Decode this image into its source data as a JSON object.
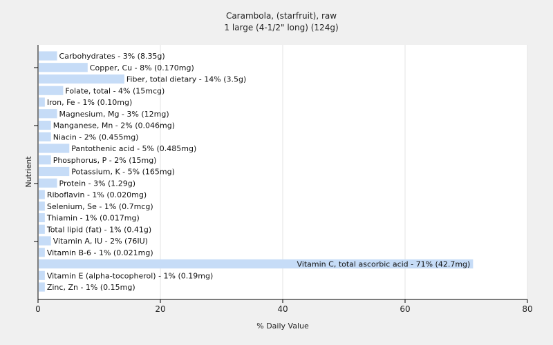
{
  "chart_data": {
    "type": "bar",
    "orientation": "horizontal",
    "title": "Carambola, (starfruit), raw",
    "subtitle": "1 large (4-1/2\" long) (124g)",
    "xlabel": "% Daily Value",
    "ylabel": "Nutrient",
    "xlim": [
      0,
      80
    ],
    "xticks": [
      "0",
      "20",
      "40",
      "60",
      "80"
    ],
    "grid": true,
    "bar_color": "#c6dcf7",
    "categories": [
      "Carbohydrates",
      "Copper, Cu",
      "Fiber, total dietary",
      "Folate, total",
      "Iron, Fe",
      "Magnesium, Mg",
      "Manganese, Mn",
      "Niacin",
      "Pantothenic acid",
      "Phosphorus, P",
      "Potassium, K",
      "Protein",
      "Riboflavin",
      "Selenium, Se",
      "Thiamin",
      "Total lipid (fat)",
      "Vitamin A, IU",
      "Vitamin B-6",
      "Vitamin C, total ascorbic acid",
      "Vitamin E (alpha-tocopherol)",
      "Zinc, Zn"
    ],
    "values": [
      3,
      8,
      14,
      4,
      1,
      3,
      2,
      2,
      5,
      2,
      5,
      3,
      1,
      1,
      1,
      1,
      2,
      1,
      71,
      1,
      1
    ],
    "labels": [
      "Carbohydrates - 3% (8.35g)",
      "Copper, Cu - 8% (0.170mg)",
      "Fiber, total dietary - 14% (3.5g)",
      "Folate, total - 4% (15mcg)",
      "Iron, Fe - 1% (0.10mg)",
      "Magnesium, Mg - 3% (12mg)",
      "Manganese, Mn - 2% (0.046mg)",
      "Niacin - 2% (0.455mg)",
      "Pantothenic acid - 5% (0.485mg)",
      "Phosphorus, P - 2% (15mg)",
      "Potassium, K - 5% (165mg)",
      "Protein - 3% (1.29g)",
      "Riboflavin - 1% (0.020mg)",
      "Selenium, Se - 1% (0.7mcg)",
      "Thiamin - 1% (0.017mg)",
      "Total lipid (fat) - 1% (0.41g)",
      "Vitamin A, IU - 2% (76IU)",
      "Vitamin B-6 - 1% (0.021mg)",
      "Vitamin C, total ascorbic acid - 71% (42.7mg)",
      "Vitamin E (alpha-tocopherol) - 1% (0.19mg)",
      "Zinc, Zn - 1% (0.15mg)"
    ]
  }
}
